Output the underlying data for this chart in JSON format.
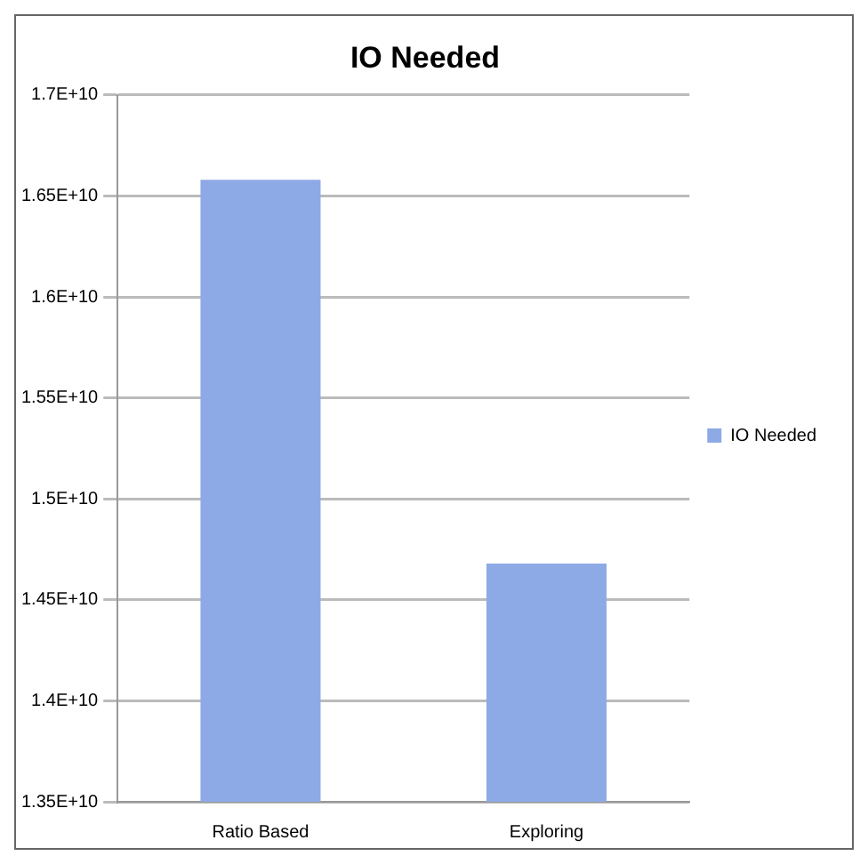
{
  "chart_data": {
    "type": "bar",
    "title": "IO Needed",
    "categories": [
      "Ratio Based",
      "Exploring"
    ],
    "series": [
      {
        "name": "IO Needed",
        "color": "#8eaae6",
        "values": [
          16580000000,
          14680000000
        ]
      }
    ],
    "ylim": [
      13500000000,
      17000000000
    ],
    "yticks": [
      {
        "value": 13500000000,
        "label": "1.35E+10"
      },
      {
        "value": 14000000000,
        "label": "1.4E+10"
      },
      {
        "value": 14500000000,
        "label": "1.45E+10"
      },
      {
        "value": 15000000000,
        "label": "1.5E+10"
      },
      {
        "value": 15500000000,
        "label": "1.55E+10"
      },
      {
        "value": 16000000000,
        "label": "1.6E+10"
      },
      {
        "value": 16500000000,
        "label": "1.65E+10"
      },
      {
        "value": 17000000000,
        "label": "1.7E+10"
      }
    ],
    "grid": "y",
    "legend": "right"
  }
}
